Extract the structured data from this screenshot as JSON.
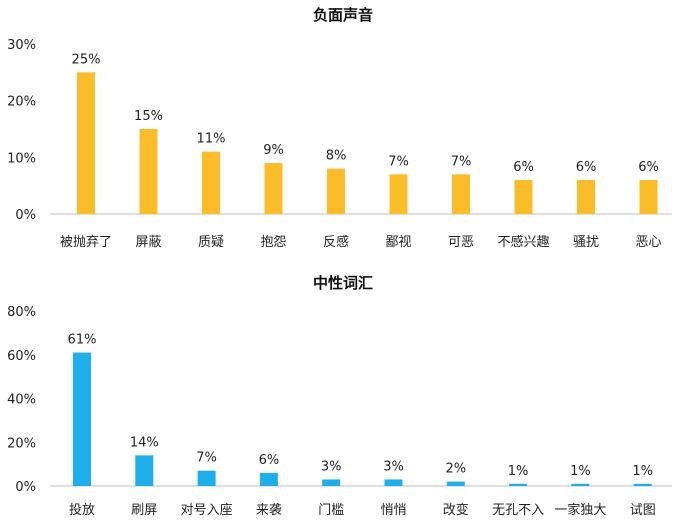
{
  "chart_data": [
    {
      "type": "bar",
      "title": "负面声音",
      "categories": [
        "被抛弃了",
        "屏蔽",
        "质疑",
        "抱怨",
        "反感",
        "鄙视",
        "可恶",
        "不感兴趣",
        "骚扰",
        "恶心"
      ],
      "values": [
        25,
        15,
        11,
        9,
        8,
        7,
        7,
        6,
        6,
        6
      ],
      "data_labels": [
        "25%",
        "15%",
        "11%",
        "9%",
        "8%",
        "7%",
        "7%",
        "6%",
        "6%",
        "6%"
      ],
      "ylim": [
        0,
        30
      ],
      "yticks": [
        "0%",
        "10%",
        "20%",
        "30%"
      ],
      "color": "#FBBC2A",
      "grid": false,
      "legend": "none"
    },
    {
      "type": "bar",
      "title": "中性词汇",
      "categories": [
        "投放",
        "刷屏",
        "对号入座",
        "来袭",
        "门槛",
        "悄悄",
        "改变",
        "无孔不入",
        "一家独大",
        "试图"
      ],
      "values": [
        61,
        14,
        7,
        6,
        3,
        3,
        2,
        1,
        1,
        1
      ],
      "data_labels": [
        "61%",
        "14%",
        "7%",
        "6%",
        "3%",
        "3%",
        "2%",
        "1%",
        "1%",
        "1%"
      ],
      "ylim": [
        0,
        80
      ],
      "yticks": [
        "0%",
        "20%",
        "40%",
        "60%",
        "80%"
      ],
      "color": "#1EAEE9",
      "grid": false,
      "legend": "none"
    }
  ]
}
